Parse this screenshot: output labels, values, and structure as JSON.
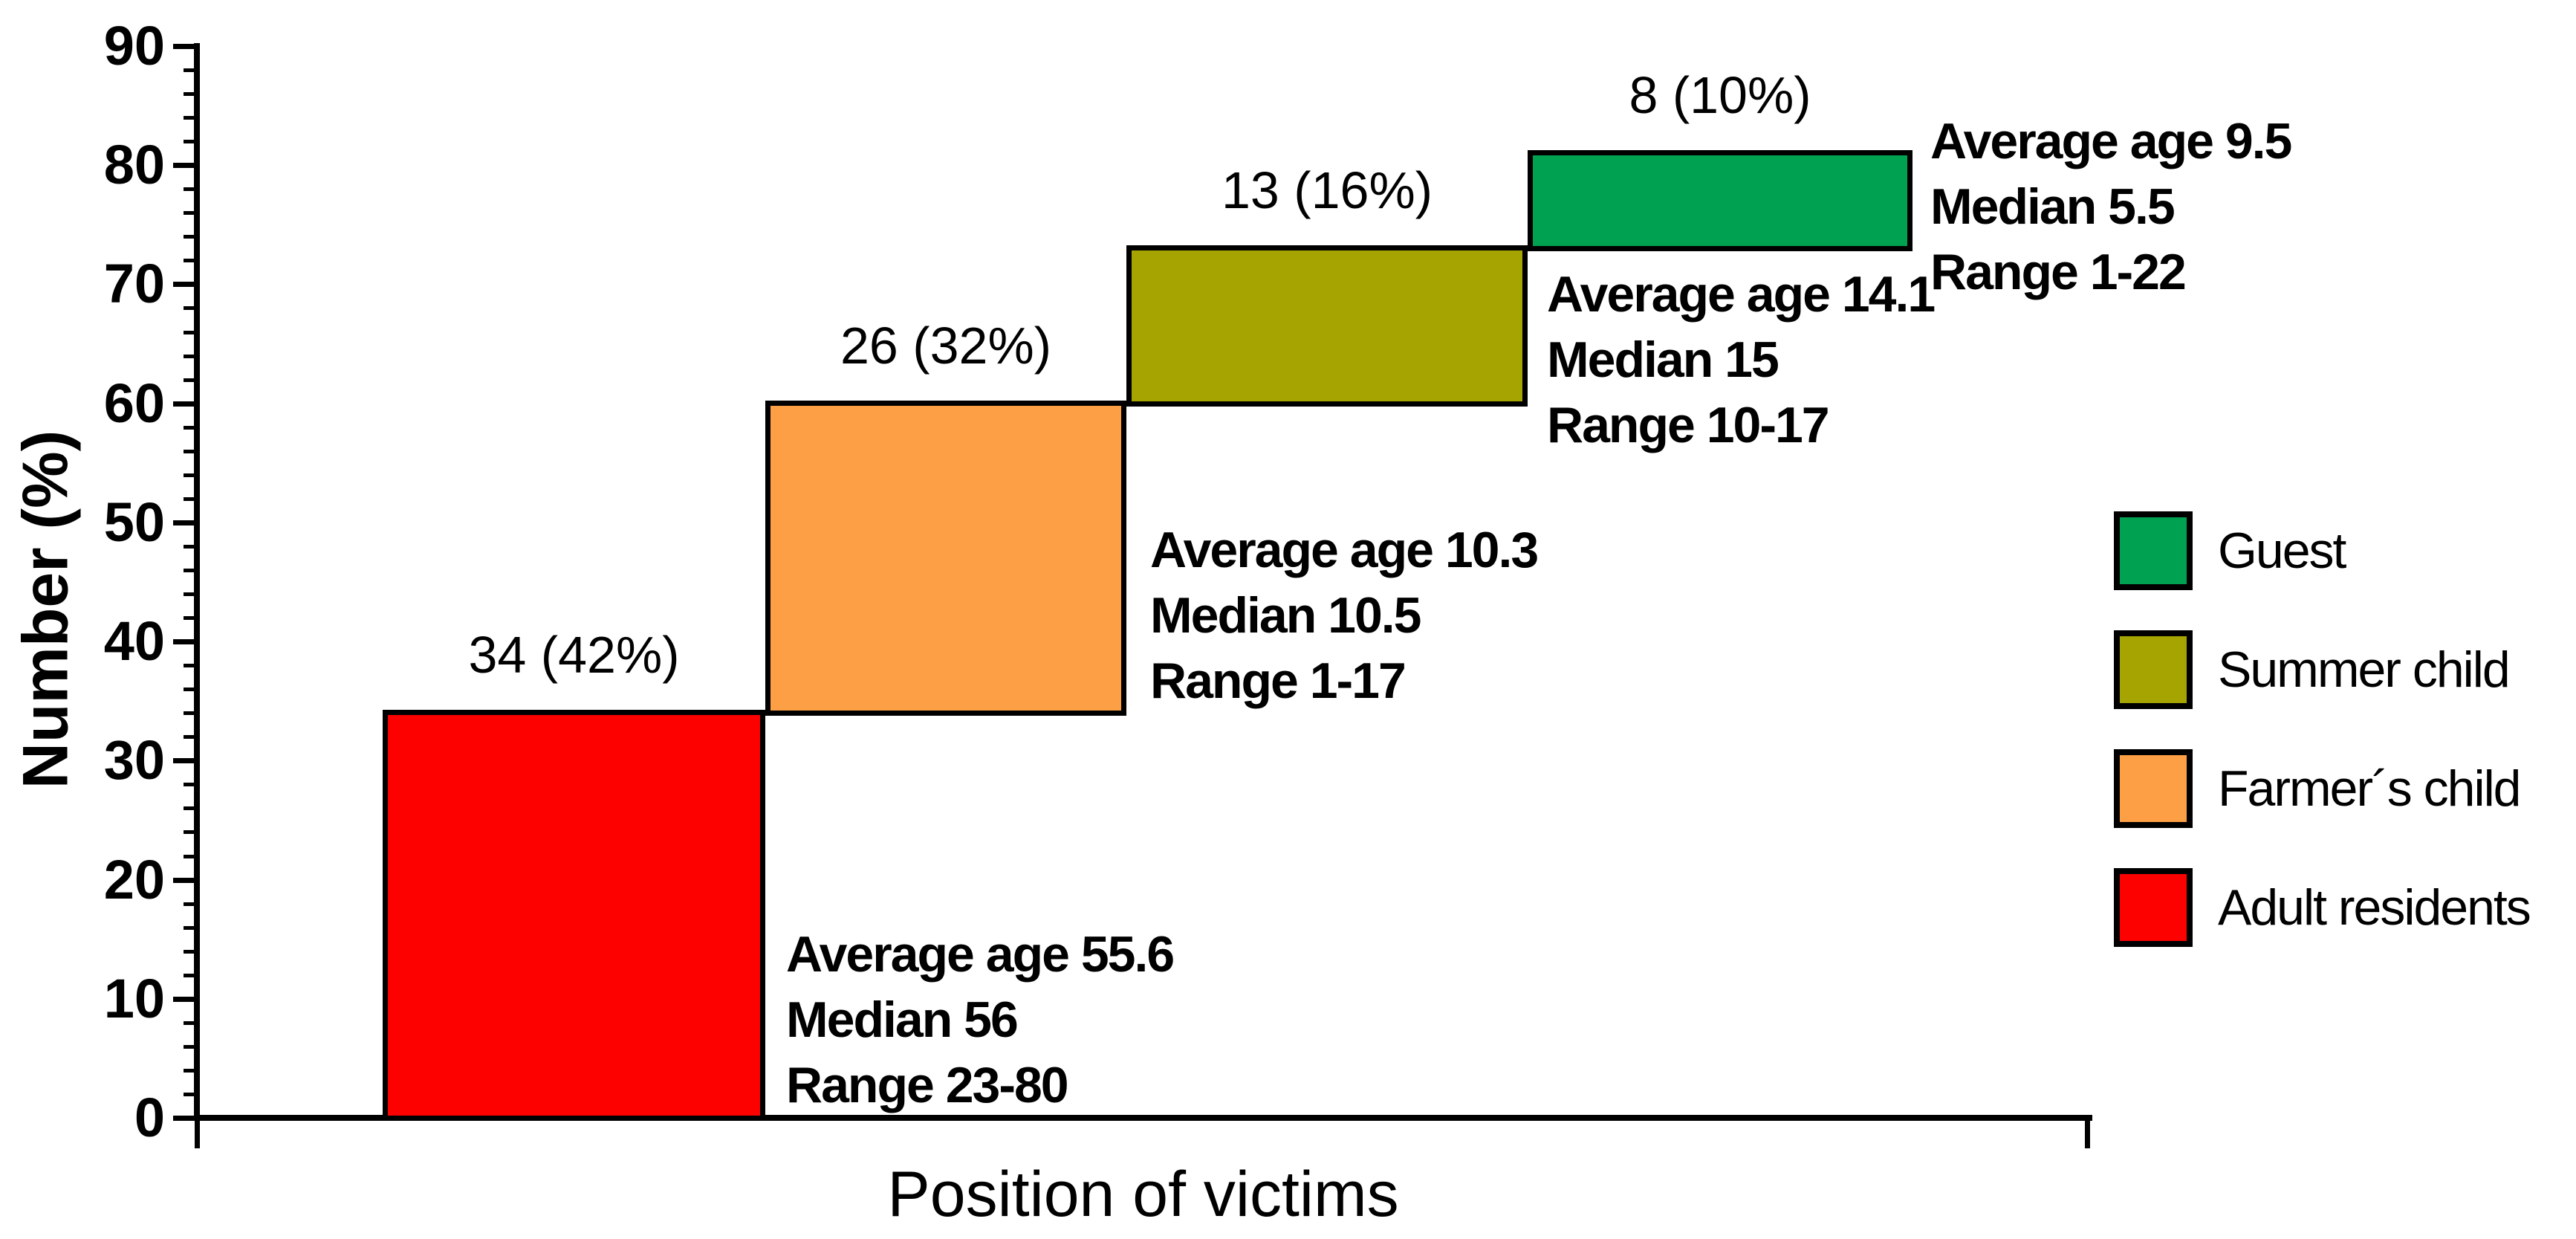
{
  "chart_data": {
    "type": "bar",
    "subtype": "waterfall-steps",
    "title": "",
    "xlabel": "Position of victims",
    "ylabel": "Number (%)",
    "ylim": [
      0,
      90
    ],
    "y_ticks": [
      0,
      10,
      20,
      30,
      40,
      50,
      60,
      70,
      80,
      90
    ],
    "y_minor_tick_step": 2,
    "grid": false,
    "legend_position": "right",
    "bars": [
      {
        "category": "Adult residents",
        "count": 34,
        "percent": "42%",
        "label": "34 (42%)",
        "cumulative_start": 0,
        "cumulative_end": 34,
        "color": "#FD0000",
        "annotation": [
          "Average age 55.6",
          "Median 56",
          "Range 23-80"
        ]
      },
      {
        "category": "Farmer´s child",
        "count": 26,
        "percent": "32%",
        "label": "26 (32%)",
        "cumulative_start": 34,
        "cumulative_end": 60,
        "color": "#FC9F45",
        "annotation": [
          "Average age 10.3",
          "Median 10.5",
          "Range 1-17"
        ]
      },
      {
        "category": "Summer child",
        "count": 13,
        "percent": "16%",
        "label": "13 (16%)",
        "cumulative_start": 60,
        "cumulative_end": 73,
        "color": "#A5A400",
        "annotation": [
          "Average age 14.1",
          "Median 15",
          "Range 10-17"
        ]
      },
      {
        "category": "Guest",
        "count": 8,
        "percent": "10%",
        "label": "8 (10%)",
        "cumulative_start": 73,
        "cumulative_end": 81,
        "color": "#00A151",
        "annotation": [
          "Average age 9.5",
          "Median 5.5",
          "Range 1-22"
        ]
      }
    ],
    "legend": [
      {
        "label": "Guest",
        "color": "#00A151"
      },
      {
        "label": "Summer child",
        "color": "#A5A400"
      },
      {
        "label": "Farmer´s child",
        "color": "#FC9F45"
      },
      {
        "label": "Adult residents",
        "color": "#FD0000"
      }
    ]
  }
}
